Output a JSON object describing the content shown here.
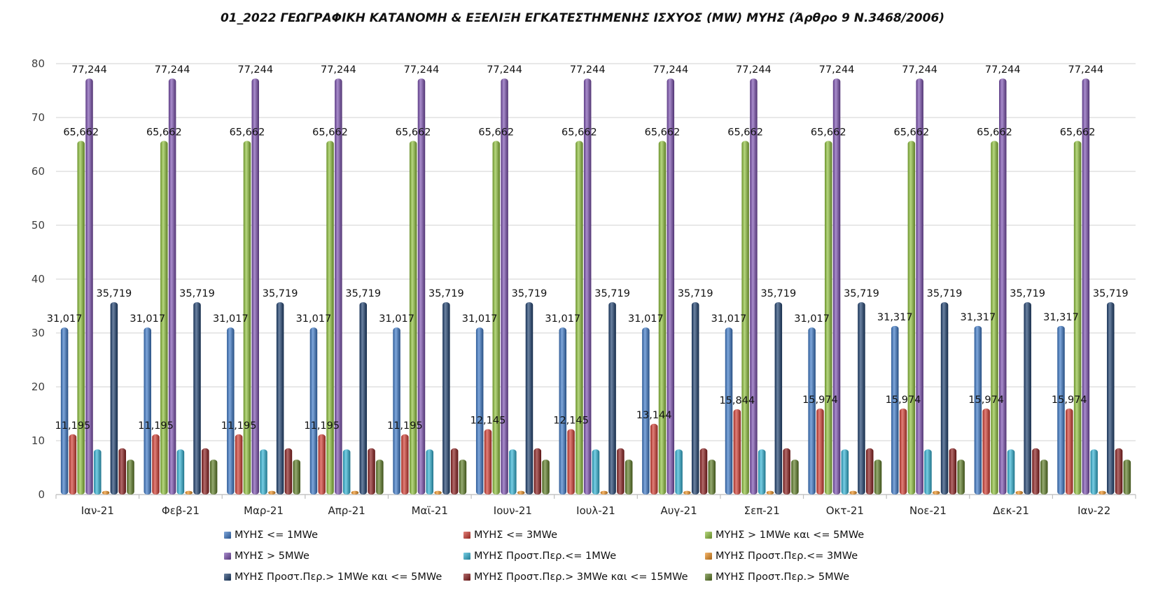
{
  "chart_data": {
    "type": "bar",
    "title": "01_2022 ΓΕΩΓΡΑΦΙΚΗ ΚΑΤΑΝΟΜΗ & ΕΞΕΛΙΞΗ ΕΓΚΑΤΕΣΤΗΜΕΝΗΣ ΙΣΧΥΟΣ (MW) ΜΥΗΣ (Άρθρο 9 Ν.3468/2006)",
    "xlabel": "",
    "ylabel": "",
    "ylim": [
      0,
      80
    ],
    "yticks": [
      "0",
      "10",
      "20",
      "30",
      "40",
      "50",
      "60",
      "70",
      "80"
    ],
    "grid": true,
    "legend_position": "bottom",
    "categories": [
      "Ιαν-21",
      "Φεβ-21",
      "Μαρ-21",
      "Απρ-21",
      "Μαϊ-21",
      "Ιουν-21",
      "Ιουλ-21",
      "Αυγ-21",
      "Σεπ-21",
      "Οκτ-21",
      "Νοε-21",
      "Δεκ-21",
      "Ιαν-22"
    ],
    "series": [
      {
        "name": "ΜΥΗΣ <= 1MWe",
        "color": "#3a78c8",
        "values": [
          31.017,
          31.017,
          31.017,
          31.017,
          31.017,
          31.017,
          31.017,
          31.017,
          31.017,
          31.017,
          31.317,
          31.317,
          31.317
        ],
        "labels": [
          "31,017",
          "31,017",
          "31,017",
          "31,017",
          "31,017",
          "31,017",
          "31,017",
          "31,017",
          "31,017",
          "31,017",
          "31,317",
          "31,317",
          "31,317"
        ]
      },
      {
        "name": "ΜΥΗΣ <= 3MWe",
        "color": "#d23a30",
        "values": [
          11.195,
          11.195,
          11.195,
          11.195,
          11.195,
          12.145,
          12.145,
          13.144,
          15.844,
          15.974,
          15.974,
          15.974,
          15.974
        ],
        "labels": [
          "11,195",
          "11,195",
          "11,195",
          "11,195",
          "11,195",
          "12,145",
          "12,145",
          "13,144",
          "15,844",
          "15,974",
          "15,974",
          "15,974",
          "15,974"
        ]
      },
      {
        "name": "ΜΥΗΣ > 1MWe και <= 5MWe",
        "color": "#8fc23a",
        "values": [
          65.662,
          65.662,
          65.662,
          65.662,
          65.662,
          65.662,
          65.662,
          65.662,
          65.662,
          65.662,
          65.662,
          65.662,
          65.662
        ],
        "labels": [
          "65,662",
          "65,662",
          "65,662",
          "65,662",
          "65,662",
          "65,662",
          "65,662",
          "65,662",
          "65,662",
          "65,662",
          "65,662",
          "65,662",
          "65,662"
        ]
      },
      {
        "name": "ΜΥΗΣ > 5MWe",
        "color": "#7b4fb0",
        "values": [
          77.244,
          77.244,
          77.244,
          77.244,
          77.244,
          77.244,
          77.244,
          77.244,
          77.244,
          77.244,
          77.244,
          77.244,
          77.244
        ],
        "labels": [
          "77,244",
          "77,244",
          "77,244",
          "77,244",
          "77,244",
          "77,244",
          "77,244",
          "77,244",
          "77,244",
          "77,244",
          "77,244",
          "77,244",
          "77,244"
        ]
      },
      {
        "name": "ΜΥΗΣ Προστ.Περ.<= 1MWe",
        "color": "#2fb3d6",
        "values": [
          8.4,
          8.4,
          8.4,
          8.4,
          8.4,
          8.4,
          8.4,
          8.4,
          8.4,
          8.4,
          8.4,
          8.4,
          8.4
        ],
        "labels": []
      },
      {
        "name": "ΜΥΗΣ Προστ.Περ.<= 3MWe",
        "color": "#f0901e",
        "values": [
          0.7,
          0.7,
          0.7,
          0.7,
          0.7,
          0.7,
          0.7,
          0.7,
          0.7,
          0.7,
          0.7,
          0.7,
          0.7
        ],
        "labels": []
      },
      {
        "name": "ΜΥΗΣ Προστ.Περ.> 1MWe και <= 5MWe",
        "color": "#1c3f6e",
        "values": [
          35.719,
          35.719,
          35.719,
          35.719,
          35.719,
          35.719,
          35.719,
          35.719,
          35.719,
          35.719,
          35.719,
          35.719,
          35.719
        ],
        "labels": [
          "35,719",
          "35,719",
          "35,719",
          "35,719",
          "35,719",
          "35,719",
          "35,719",
          "35,719",
          "35,719",
          "35,719",
          "35,719",
          "35,719",
          "35,719"
        ]
      },
      {
        "name": "ΜΥΗΣ Προστ.Περ.> 3MWe και <= 15MWe",
        "color": "#8a1c1c",
        "values": [
          8.6,
          8.6,
          8.6,
          8.6,
          8.6,
          8.6,
          8.6,
          8.6,
          8.6,
          8.6,
          8.6,
          8.6,
          8.6
        ],
        "labels": []
      },
      {
        "name": "ΜΥΗΣ Προστ.Περ.> 5MWe",
        "color": "#5e7d25",
        "values": [
          6.5,
          6.5,
          6.5,
          6.5,
          6.5,
          6.5,
          6.5,
          6.5,
          6.5,
          6.5,
          6.5,
          6.5,
          6.5
        ],
        "labels": []
      }
    ]
  }
}
